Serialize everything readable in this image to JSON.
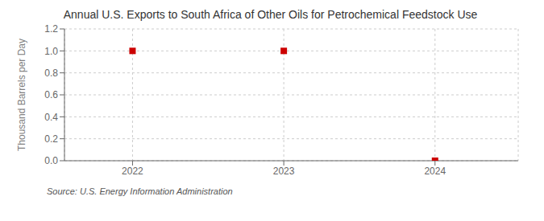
{
  "chart_data": {
    "type": "scatter",
    "title": "Annual U.S. Exports to South Africa of Other Oils for Petrochemical Feedstock Use",
    "ylabel": "Thousand Barrels per Day",
    "annotations": [
      "Source: U.S. Energy Information Administration"
    ],
    "x": [
      2022,
      2023,
      2024
    ],
    "values": [
      1.0,
      1.0,
      0.0
    ],
    "color": "#cc0000",
    "marker": "square",
    "xlim": [
      2021.55,
      2024.55
    ],
    "xticks": [
      2022,
      2023,
      2024
    ],
    "ylim": [
      0.0,
      1.2
    ],
    "yticks": [
      {
        "value": 0.0,
        "label": "0.0"
      },
      {
        "value": 0.2,
        "label": "0.2"
      },
      {
        "value": 0.4,
        "label": "0.4"
      },
      {
        "value": 0.6,
        "label": "0.6"
      },
      {
        "value": 0.8,
        "label": "0.8"
      },
      {
        "value": 1.0,
        "label": "1.0"
      },
      {
        "value": 1.2,
        "label": "1.2"
      }
    ],
    "grid": true
  }
}
